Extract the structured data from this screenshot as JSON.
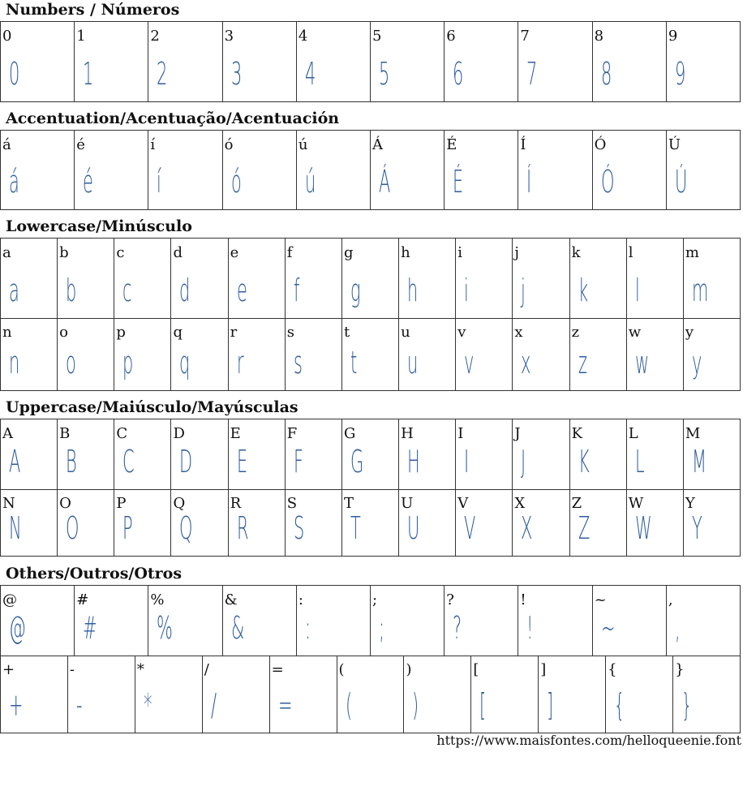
{
  "sections": [
    {
      "title": "Numbers / Números",
      "rows": [
        [
          "0",
          "1",
          "2",
          "3",
          "4",
          "5",
          "6",
          "7",
          "8",
          "9"
        ]
      ]
    },
    {
      "title": "Accentuation/Acentuação/Acentuación",
      "rows": [
        [
          "á",
          "é",
          "í",
          "ó",
          "ú",
          "Á",
          "É",
          "Í",
          "Ó",
          "Ú"
        ]
      ]
    },
    {
      "title": "Lowercase/Minúsculo",
      "rows": [
        [
          "a",
          "b",
          "c",
          "d",
          "e",
          "f",
          "g",
          "h",
          "i",
          "j",
          "k",
          "l",
          "m"
        ],
        [
          "n",
          "o",
          "p",
          "q",
          "r",
          "s",
          "t",
          "u",
          "v",
          "x",
          "z",
          "w",
          "y"
        ]
      ]
    },
    {
      "title": "Uppercase/Maiúsculo/Mayúsculas",
      "rows": [
        [
          "A",
          "B",
          "C",
          "D",
          "E",
          "F",
          "G",
          "H",
          "I",
          "J",
          "K",
          "L",
          "M"
        ],
        [
          "N",
          "O",
          "P",
          "Q",
          "R",
          "S",
          "T",
          "U",
          "V",
          "X",
          "Z",
          "W",
          "Y"
        ]
      ]
    },
    {
      "title": "Others/Outros/Otros",
      "rows": [
        [
          "@",
          "#",
          "%",
          "&",
          ":",
          ";",
          "?",
          "!",
          "~",
          ","
        ],
        [
          "+",
          "-",
          "*",
          "/",
          "=",
          "(",
          ")",
          "[",
          "]",
          "{",
          "}"
        ]
      ]
    }
  ],
  "footer": {
    "url": "https://www.maisfontes.com/helloqueenie.font"
  },
  "colors": {
    "glyph": "#2f5d9e",
    "border": "#333333"
  }
}
